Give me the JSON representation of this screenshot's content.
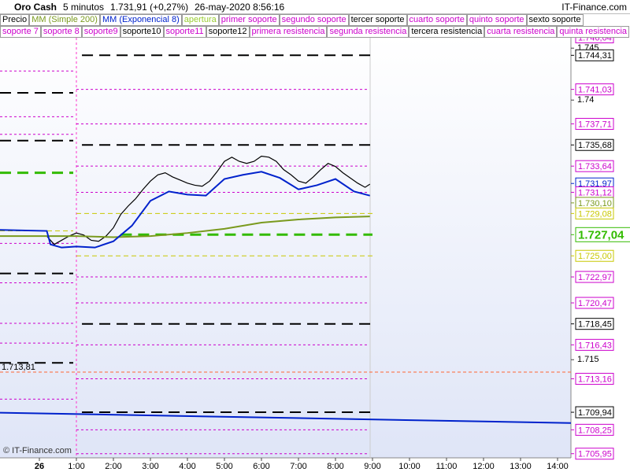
{
  "header": {
    "instrument": "Oro Cash",
    "interval": "5 minutos",
    "price": "1.731,91 (+0,27%)",
    "datetime": "26-may-2020 8:56:16",
    "brand": "IT-Finance.com"
  },
  "watermark": "© IT-Finance.com",
  "chart_data": {
    "type": "line",
    "xlim": [
      -1.064,
      14.362
    ],
    "xticks": [
      {
        "value": 0,
        "label": "26"
      },
      {
        "value": 1,
        "label": "1:00"
      },
      {
        "value": 2,
        "label": "2:00"
      },
      {
        "value": 3,
        "label": "3:00"
      },
      {
        "value": 4,
        "label": "4:00"
      },
      {
        "value": 5,
        "label": "5:00"
      },
      {
        "value": 6,
        "label": "6:00"
      },
      {
        "value": 7,
        "label": "7:00"
      },
      {
        "value": 8,
        "label": "8:00"
      },
      {
        "value": 9,
        "label": "9:00"
      },
      {
        "value": 10,
        "label": "10:00"
      },
      {
        "value": 11,
        "label": "11:00"
      },
      {
        "value": 12,
        "label": "12:00"
      },
      {
        "value": 13,
        "label": "13:00"
      },
      {
        "value": 14,
        "label": "14:00"
      }
    ],
    "ylim": [
      1.70555,
      1.746
    ],
    "yticks": [
      1.745,
      1.74,
      1.715
    ],
    "series": [
      {
        "name": "Precio",
        "color": "#000000",
        "x": [
          0.2,
          0.4,
          0.6,
          0.8,
          1.0,
          1.2,
          1.4,
          1.6,
          1.8,
          2.0,
          2.2,
          2.4,
          2.6,
          2.8,
          3.0,
          3.2,
          3.4,
          3.6,
          3.8,
          4.0,
          4.2,
          4.4,
          4.6,
          4.8,
          5.0,
          5.2,
          5.4,
          5.6,
          5.8,
          6.0,
          6.2,
          6.4,
          6.6,
          6.8,
          7.0,
          7.2,
          7.4,
          7.6,
          7.8,
          8.0,
          8.2,
          8.4,
          8.6,
          8.8,
          8.93
        ],
        "values": [
          1.7269,
          1.7261,
          1.7265,
          1.7269,
          1.7272,
          1.727,
          1.7265,
          1.7264,
          1.7269,
          1.7277,
          1.729,
          1.7298,
          1.7305,
          1.7314,
          1.7322,
          1.7328,
          1.733,
          1.7326,
          1.7323,
          1.732,
          1.7318,
          1.7317,
          1.7322,
          1.7331,
          1.7341,
          1.7345,
          1.7341,
          1.7339,
          1.7341,
          1.7346,
          1.7345,
          1.7341,
          1.7333,
          1.7328,
          1.7322,
          1.732,
          1.7326,
          1.7333,
          1.7339,
          1.7336,
          1.733,
          1.7325,
          1.732,
          1.7316,
          1.7319
        ]
      },
      {
        "name": "MM (Simple 200)",
        "color": "#7a9a1e",
        "x": [
          -1.064,
          1.0,
          2.0,
          3.0,
          4.0,
          5.0,
          6.0,
          7.0,
          8.0,
          8.93
        ],
        "values": [
          1.7269,
          1.7269,
          1.7268,
          1.7269,
          1.7272,
          1.7276,
          1.7282,
          1.7285,
          1.7287,
          1.7288
        ]
      },
      {
        "name": "MM (Exponencial 8)",
        "color": "#0022cc",
        "x": [
          -1.064,
          0.2,
          0.3,
          0.6,
          1.0,
          1.5,
          2.0,
          2.5,
          3.0,
          3.5,
          4.0,
          4.5,
          5.0,
          5.5,
          6.0,
          6.5,
          7.0,
          7.5,
          8.0,
          8.5,
          8.93
        ],
        "values": [
          1.7275,
          1.7274,
          1.7261,
          1.7258,
          1.7259,
          1.7258,
          1.7264,
          1.7279,
          1.7303,
          1.7312,
          1.7309,
          1.7308,
          1.7324,
          1.7328,
          1.7331,
          1.7325,
          1.7314,
          1.7318,
          1.7324,
          1.7312,
          1.7308
        ]
      }
    ],
    "level_names": [
      {
        "label": "apertura",
        "color": "#9acd32"
      },
      {
        "label": "primer soporte",
        "color": "#cc00cc"
      },
      {
        "label": "segundo soporte",
        "color": "#cc00cc"
      },
      {
        "label": "tercer soporte",
        "color": "#000000"
      },
      {
        "label": "cuarto soporte",
        "color": "#cc00cc"
      },
      {
        "label": "quinto soporte",
        "color": "#cc00cc"
      },
      {
        "label": "sexto soporte",
        "color": "#000000"
      },
      {
        "label": "soporte 7",
        "color": "#cc00cc"
      },
      {
        "label": "soporte 8",
        "color": "#cc00cc"
      },
      {
        "label": "soporte9",
        "color": "#cc00cc"
      },
      {
        "label": "soporte10",
        "color": "#000000"
      },
      {
        "label": "soporte11",
        "color": "#cc00cc"
      },
      {
        "label": "soporte12",
        "color": "#000000"
      },
      {
        "label": "primera resistencia",
        "color": "#cc00cc"
      },
      {
        "label": "segunda resistencia",
        "color": "#cc00cc"
      },
      {
        "label": "tercera resistencia",
        "color": "#000000"
      },
      {
        "label": "cuarta resistencia",
        "color": "#cc00cc"
      },
      {
        "label": "quinta resistencia",
        "color": "#cc00cc"
      }
    ],
    "levels": [
      {
        "value": 1.74604,
        "label": "1.746,04",
        "color": "#cc00cc",
        "style": "minor"
      },
      {
        "value": 1.74431,
        "label": "1.744,31",
        "color": "#000000",
        "style": "major"
      },
      {
        "value": 1.74103,
        "label": "1.741,03",
        "color": "#cc00cc",
        "style": "minor"
      },
      {
        "value": 1.73771,
        "label": "1.737,71",
        "color": "#cc00cc",
        "style": "minor"
      },
      {
        "value": 1.73568,
        "label": "1.735,68",
        "color": "#000000",
        "style": "major"
      },
      {
        "value": 1.73364,
        "label": "1.733,64",
        "color": "#cc00cc",
        "style": "minor"
      },
      {
        "value": 1.73197,
        "label": "1.731,97",
        "color": "#0022cc",
        "style": "none"
      },
      {
        "value": 1.73112,
        "label": "1.731,12",
        "color": "#cc00cc",
        "style": "minor"
      },
      {
        "value": 1.7301,
        "label": "1.730,10",
        "color": "#7a9a1e",
        "style": "none"
      },
      {
        "value": 1.72908,
        "label": "1.729,08",
        "color": "#c8c800",
        "style": "open"
      },
      {
        "value": 1.72704,
        "label": "1.727,04",
        "color": "#33bb00",
        "style": "pivot"
      },
      {
        "value": 1.725,
        "label": "1.725,00",
        "color": "#c8c800",
        "style": "open"
      },
      {
        "value": 1.72297,
        "label": "1.722,97",
        "color": "#cc00cc",
        "style": "minor"
      },
      {
        "value": 1.72047,
        "label": "1.720,47",
        "color": "#cc00cc",
        "style": "minor"
      },
      {
        "value": 1.71845,
        "label": "1.718,45",
        "color": "#000000",
        "style": "major"
      },
      {
        "value": 1.71643,
        "label": "1.716,43",
        "color": "#cc00cc",
        "style": "minor"
      },
      {
        "value": 1.71316,
        "label": "1.713,16",
        "color": "#cc00cc",
        "style": "minor"
      },
      {
        "value": 1.70994,
        "label": "1.709,94",
        "color": "#000000",
        "style": "major"
      },
      {
        "value": 1.70825,
        "label": "1.708,25",
        "color": "#cc00cc",
        "style": "minor"
      },
      {
        "value": 1.70595,
        "label": "1.705,95",
        "color": "#cc00cc",
        "style": "minor"
      }
    ],
    "previous_levels": [
      {
        "value": 1.7407,
        "color": "#000000",
        "style": "major"
      },
      {
        "value": 1.7428,
        "color": "#cc00cc",
        "style": "minor"
      },
      {
        "value": 1.7384,
        "color": "#cc00cc",
        "style": "minor"
      },
      {
        "value": 1.7367,
        "color": "#cc00cc",
        "style": "minor"
      },
      {
        "value": 1.7361,
        "color": "#000000",
        "style": "major"
      },
      {
        "value": 1.733,
        "color": "#33bb00",
        "style": "pivot"
      },
      {
        "value": 1.7274,
        "color": "#c8c800",
        "style": "open"
      },
      {
        "value": 1.7233,
        "color": "#000000",
        "style": "major"
      },
      {
        "value": 1.7262,
        "color": "#cc00cc",
        "style": "minor"
      },
      {
        "value": 1.7224,
        "color": "#cc00cc",
        "style": "minor"
      },
      {
        "value": 1.7185,
        "color": "#cc00cc",
        "style": "minor"
      },
      {
        "value": 1.7166,
        "color": "#cc00cc",
        "style": "minor"
      },
      {
        "value": 1.7147,
        "color": "#000000",
        "style": "major"
      },
      {
        "value": 1.7112,
        "color": "#cc00cc",
        "style": "minor"
      }
    ],
    "marker_line": {
      "value": 1.71381,
      "label": "1.713,81",
      "color": "#ff6633"
    },
    "trend_line": {
      "x": [
        -1.064,
        14.362
      ],
      "values": [
        1.7099,
        1.7089
      ],
      "color": "#0022cc"
    }
  }
}
